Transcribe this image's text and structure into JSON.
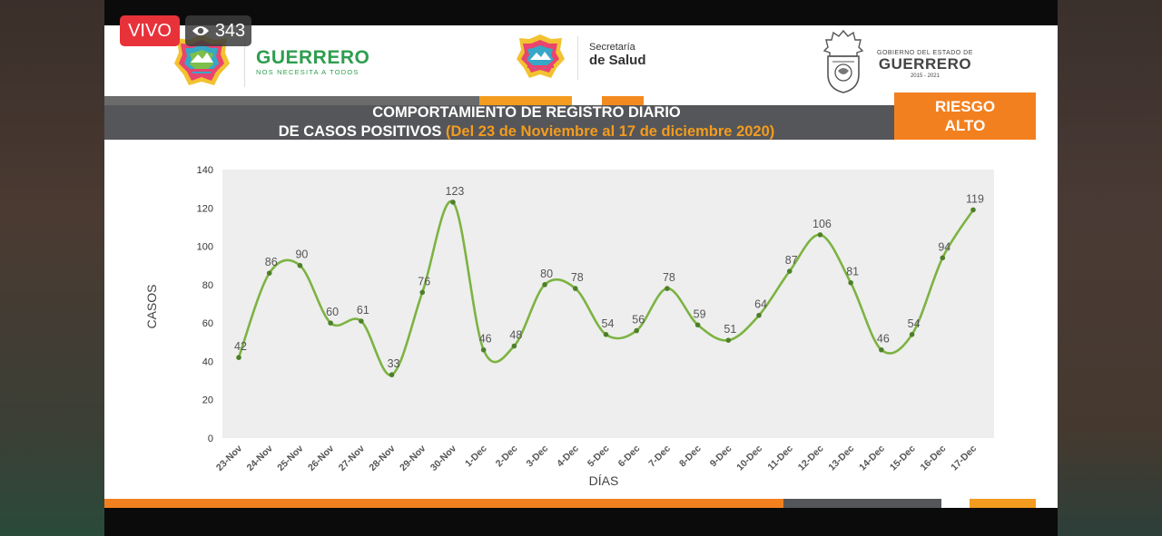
{
  "live": {
    "label": "VIVO",
    "viewers": "343"
  },
  "header": {
    "logo1_title": "GUERRERO",
    "logo1_sub": "NOS NECESITA A TODOS",
    "logo2_line1": "Secretaría",
    "logo2_line2": "de Salud",
    "logo3_line1": "GOBIERNO DEL ESTADO DE",
    "logo3_line2": "GUERRERO",
    "logo3_line3": "2015 - 2021"
  },
  "title_line1": "COMPORTAMIENTO DE REGISTRO DIARIO",
  "title_line2_a": "DE CASOS POSITIVOS ",
  "title_line2_b": "(Del 23 de Noviembre al 17 de diciembre 2020)",
  "risk_line1": "RIESGO",
  "risk_line2": "ALTO",
  "colors": {
    "line": "#7cb342",
    "plot_bg": "#eeeeee",
    "orange": "#f3801f",
    "gray": "#555659"
  },
  "chart_data": {
    "type": "line",
    "categories": [
      "23-Nov",
      "24-Nov",
      "25-Nov",
      "26-Nov",
      "27-Nov",
      "28-Nov",
      "29-Nov",
      "30-Nov",
      "1-Dec",
      "2-Dec",
      "3-Dec",
      "4-Dec",
      "5-Dec",
      "6-Dec",
      "7-Dec",
      "8-Dec",
      "9-Dec",
      "10-Dec",
      "11-Dec",
      "12-Dec",
      "13-Dec",
      "14-Dec",
      "15-Dec",
      "16-Dec",
      "17-Dec"
    ],
    "values": [
      42,
      86,
      90,
      60,
      61,
      33,
      76,
      123,
      46,
      48,
      80,
      78,
      54,
      56,
      78,
      59,
      51,
      64,
      87,
      106,
      81,
      46,
      54,
      94,
      119
    ],
    "xlabel": "DÍAS",
    "ylabel": "CASOS",
    "ylim": [
      0,
      140
    ],
    "yticks": [
      0,
      20,
      40,
      60,
      80,
      100,
      120,
      140
    ],
    "grid": false,
    "smooth": true
  }
}
